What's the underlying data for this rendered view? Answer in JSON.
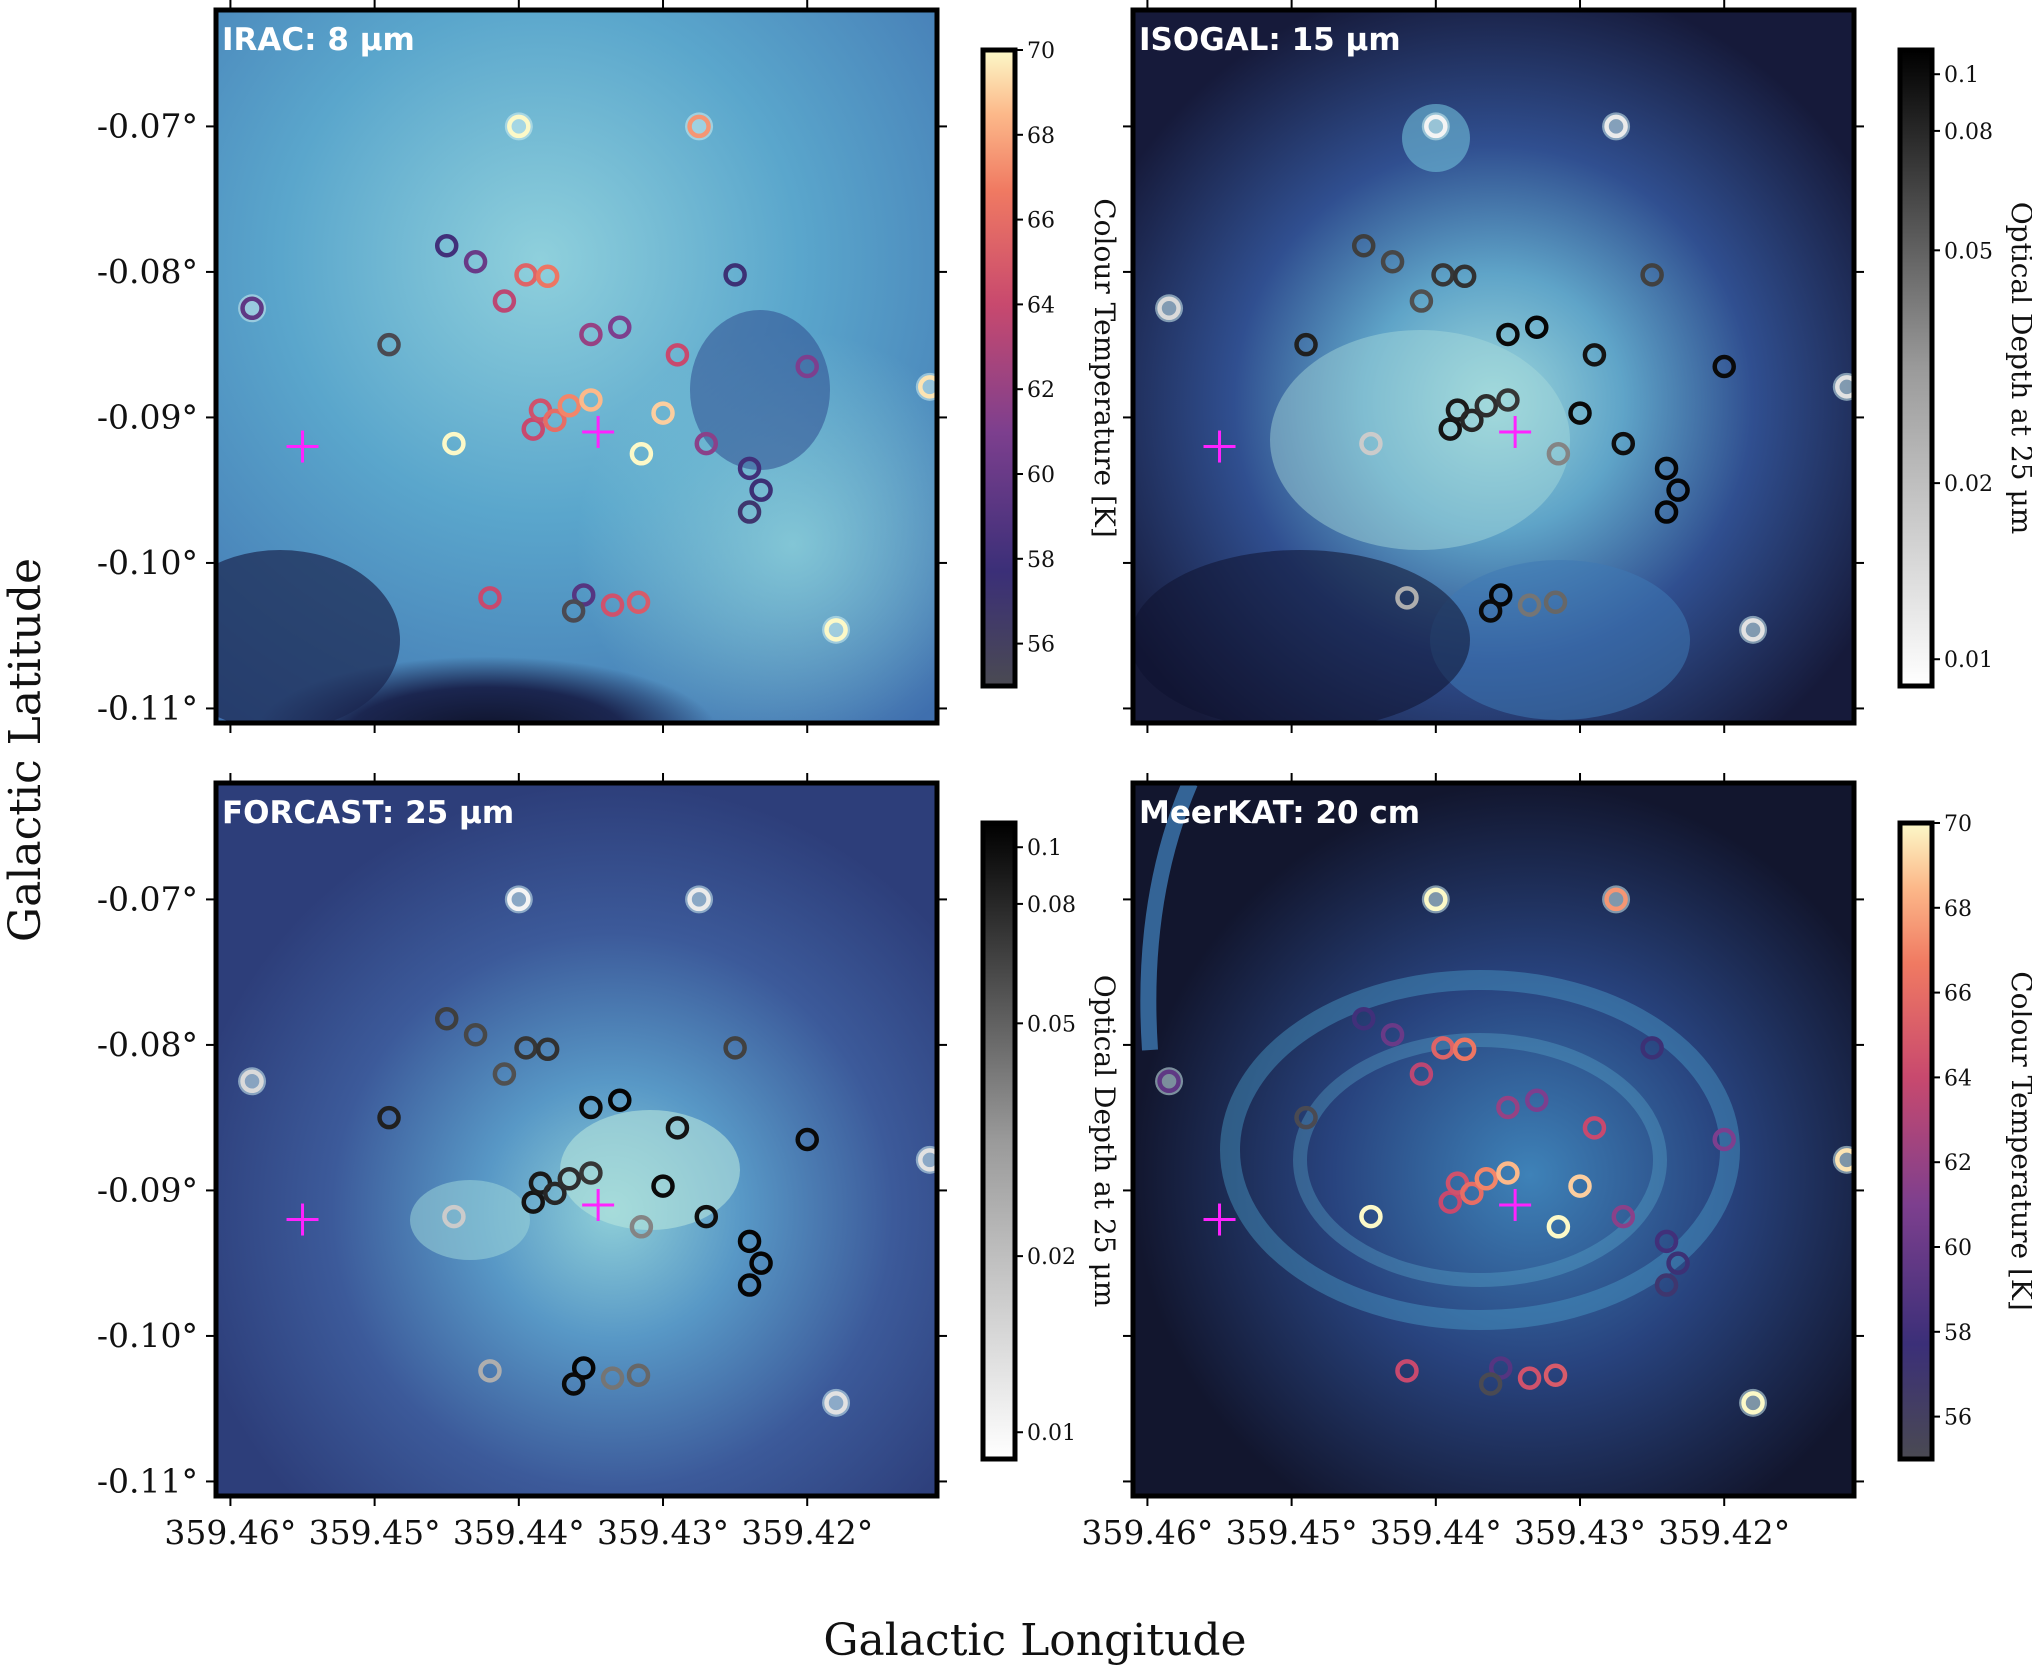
{
  "figure": {
    "xlabel": "Galactic Longitude",
    "ylabel": "Galactic Latitude",
    "x_ticks": [
      "359.46°",
      "359.45°",
      "359.44°",
      "359.43°",
      "359.42°"
    ],
    "y_ticks": [
      "-0.07°",
      "-0.08°",
      "-0.09°",
      "-0.10°",
      "-0.11°"
    ],
    "accent_cross_color": "#ff22ff"
  },
  "panels": [
    {
      "id": "irac",
      "label": "IRAC: 8 μm",
      "colorbar": "temp"
    },
    {
      "id": "isogal",
      "label": "ISOGAL: 15 μm",
      "colorbar": "tau"
    },
    {
      "id": "forcast",
      "label": "FORCAST: 25 μm",
      "colorbar": "tau"
    },
    {
      "id": "meerkat",
      "label": "MeerKAT: 20 cm",
      "colorbar": "temp"
    }
  ],
  "colorbars": {
    "temp": {
      "title": "Colour Temperature [K]",
      "range": [
        55,
        70
      ],
      "ticks": [
        "56",
        "58",
        "60",
        "62",
        "64",
        "66",
        "68",
        "70"
      ],
      "tick_values": [
        56,
        58,
        60,
        62,
        64,
        66,
        68,
        70
      ]
    },
    "tau": {
      "title": "Optical Depth at 25 μm",
      "range": [
        0.009,
        0.11
      ],
      "ticks": [
        "0.01",
        "0.02",
        "0.05",
        "0.08",
        "0.1"
      ],
      "tick_values": [
        0.01,
        0.02,
        0.05,
        0.08,
        0.1
      ]
    }
  },
  "chart_data": {
    "type": "scatter",
    "x_axis": {
      "label": "Galactic Longitude",
      "range": [
        359.461,
        359.411
      ],
      "unit": "deg"
    },
    "y_axis": {
      "label": "Galactic Latitude",
      "range": [
        -0.111,
        -0.062
      ],
      "unit": "deg"
    },
    "cross": {
      "l": 359.455,
      "b": -0.092
    },
    "cross2": {
      "l": 359.4345,
      "b": -0.091
    },
    "sources": [
      {
        "l": 359.44,
        "b": -0.07,
        "T": 70.0,
        "tau": 0.01
      },
      {
        "l": 359.4275,
        "b": -0.07,
        "T": 67.5,
        "tau": 0.011
      },
      {
        "l": 359.4585,
        "b": -0.0825,
        "T": 59.5,
        "tau": 0.013
      },
      {
        "l": 359.445,
        "b": -0.0782,
        "T": 58.0,
        "tau": 0.06
      },
      {
        "l": 359.443,
        "b": -0.0793,
        "T": 60.0,
        "tau": 0.055
      },
      {
        "l": 359.441,
        "b": -0.082,
        "T": 63.5,
        "tau": 0.05
      },
      {
        "l": 359.4395,
        "b": -0.0802,
        "T": 65.5,
        "tau": 0.065
      },
      {
        "l": 359.438,
        "b": -0.0803,
        "T": 66.5,
        "tau": 0.068
      },
      {
        "l": 359.449,
        "b": -0.085,
        "T": 55.0,
        "tau": 0.08
      },
      {
        "l": 359.435,
        "b": -0.0843,
        "T": 62.0,
        "tau": 0.1
      },
      {
        "l": 359.433,
        "b": -0.0838,
        "T": 61.0,
        "tau": 0.105
      },
      {
        "l": 359.429,
        "b": -0.0857,
        "T": 64.0,
        "tau": 0.09
      },
      {
        "l": 359.42,
        "b": -0.0865,
        "T": 61.0,
        "tau": 0.1
      },
      {
        "l": 359.4115,
        "b": -0.0879,
        "T": 69.5,
        "tau": 0.012
      },
      {
        "l": 359.425,
        "b": -0.0802,
        "T": 57.5,
        "tau": 0.058
      },
      {
        "l": 359.4445,
        "b": -0.0918,
        "T": 70.0,
        "tau": 0.015
      },
      {
        "l": 359.439,
        "b": -0.0908,
        "T": 64.0,
        "tau": 0.09
      },
      {
        "l": 359.4385,
        "b": -0.0895,
        "T": 64.5,
        "tau": 0.085
      },
      {
        "l": 359.4375,
        "b": -0.0902,
        "T": 66.0,
        "tau": 0.075
      },
      {
        "l": 359.4365,
        "b": -0.0892,
        "T": 67.0,
        "tau": 0.07
      },
      {
        "l": 359.435,
        "b": -0.0888,
        "T": 68.5,
        "tau": 0.065
      },
      {
        "l": 359.4315,
        "b": -0.0925,
        "T": 70.0,
        "tau": 0.03
      },
      {
        "l": 359.43,
        "b": -0.0897,
        "T": 69.0,
        "tau": 0.1
      },
      {
        "l": 359.427,
        "b": -0.0918,
        "T": 61.5,
        "tau": 0.095
      },
      {
        "l": 359.424,
        "b": -0.0935,
        "T": 58.0,
        "tau": 0.105
      },
      {
        "l": 359.4232,
        "b": -0.095,
        "T": 57.5,
        "tau": 0.105
      },
      {
        "l": 359.424,
        "b": -0.0965,
        "T": 57.0,
        "tau": 0.105
      },
      {
        "l": 359.442,
        "b": -0.1024,
        "T": 64.0,
        "tau": 0.02
      },
      {
        "l": 359.4355,
        "b": -0.1022,
        "T": 59.0,
        "tau": 0.105
      },
      {
        "l": 359.4362,
        "b": -0.1033,
        "T": 55.0,
        "tau": 0.1
      },
      {
        "l": 359.4335,
        "b": -0.1029,
        "T": 64.5,
        "tau": 0.035
      },
      {
        "l": 359.4317,
        "b": -0.1027,
        "T": 65.0,
        "tau": 0.04
      },
      {
        "l": 359.418,
        "b": -0.1046,
        "T": 70.0,
        "tau": 0.012
      }
    ]
  }
}
